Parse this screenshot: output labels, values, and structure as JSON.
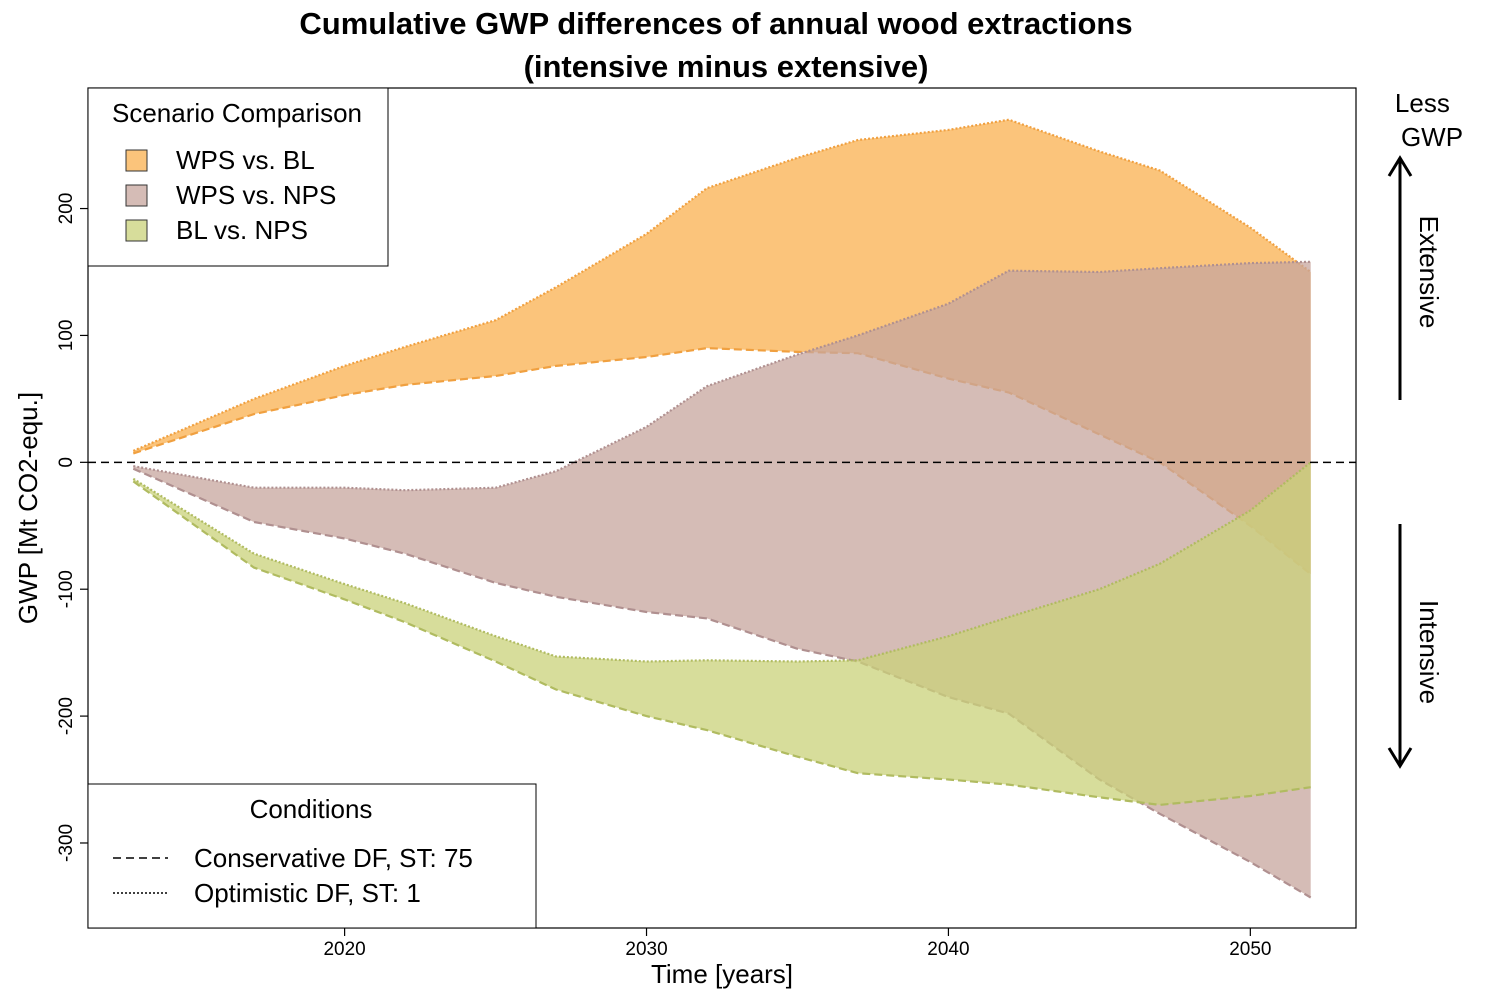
{
  "chart_data": {
    "type": "area",
    "title": "Cumulative GWP differences of annual wood extractions",
    "subtitle": "(intensive minus extensive)",
    "xlabel": "Time [years]",
    "ylabel": "GWP [Mt CO2-equ.]",
    "xlim": [
      2011.5,
      2053.5
    ],
    "ylim": [
      -367,
      295
    ],
    "xticks": [
      2020,
      2030,
      2040,
      2050
    ],
    "xtick_labels": [
      "2020",
      "2030",
      "2040",
      "2050"
    ],
    "yticks": [
      -300,
      -200,
      -100,
      0,
      100,
      200
    ],
    "ytick_labels": [
      "-300",
      "-200",
      "-100",
      "0",
      "100",
      "200"
    ],
    "zero_line": true,
    "grid": false,
    "legend_scenario": {
      "title": "Scenario Comparison",
      "placement": "top-left",
      "entries": [
        "WPS vs. BL",
        "WPS vs. NPS",
        "BL vs. NPS"
      ]
    },
    "legend_conditions": {
      "title": "Conditions",
      "placement": "bottom-left",
      "entries": [
        {
          "label": "Conservative DF, ST: 75",
          "style": "dashed"
        },
        {
          "label": "Optimistic DF, ST: 1",
          "style": "dotted"
        }
      ]
    },
    "side_annotations": {
      "top": "Less\nGWP",
      "up_arrow_label": "Extensive",
      "down_arrow_label": "Intensive"
    },
    "series": [
      {
        "name": "WPS vs. BL",
        "fill": "#f9b04f",
        "fill_opacity": 0.75,
        "stroke": "#f0a040",
        "x": [
          2013,
          2017,
          2020,
          2022,
          2025,
          2027,
          2030,
          2032,
          2035,
          2037,
          2040,
          2042,
          2045,
          2047,
          2050,
          2052
        ],
        "optimistic": [
          9,
          50,
          76,
          91,
          112,
          138,
          180,
          216,
          240,
          254,
          262,
          270,
          245,
          230,
          185,
          150
        ],
        "conservative": [
          7,
          38,
          53,
          61,
          68,
          76,
          83,
          90,
          87,
          86,
          66,
          55,
          22,
          0,
          -50,
          -88
        ]
      },
      {
        "name": "WPS vs. NPS",
        "fill": "#c7a59e",
        "fill_opacity": 0.75,
        "stroke": "#b09090",
        "x": [
          2013,
          2017,
          2020,
          2022,
          2025,
          2027,
          2030,
          2032,
          2035,
          2037,
          2040,
          2042,
          2045,
          2047,
          2050,
          2052
        ],
        "optimistic": [
          -3,
          -20,
          -20,
          -22,
          -20,
          -7,
          28,
          60,
          85,
          100,
          125,
          151,
          150,
          153,
          157,
          158
        ],
        "conservative": [
          -5,
          -47,
          -60,
          -72,
          -95,
          -106,
          -118,
          -123,
          -147,
          -157,
          -185,
          -198,
          -250,
          -277,
          -315,
          -343
        ]
      },
      {
        "name": "BL vs. NPS",
        "fill": "#c9d17a",
        "fill_opacity": 0.75,
        "stroke": "#b0bb60",
        "x": [
          2013,
          2017,
          2020,
          2022,
          2025,
          2027,
          2030,
          2032,
          2035,
          2037,
          2040,
          2042,
          2045,
          2047,
          2050,
          2052
        ],
        "optimistic": [
          -13,
          -72,
          -96,
          -111,
          -137,
          -153,
          -157,
          -156,
          -157,
          -156,
          -137,
          -122,
          -100,
          -80,
          -38,
          0
        ],
        "conservative": [
          -15,
          -83,
          -108,
          -126,
          -157,
          -179,
          -200,
          -211,
          -232,
          -245,
          -250,
          -254,
          -264,
          -270,
          -263,
          -256
        ]
      }
    ]
  }
}
